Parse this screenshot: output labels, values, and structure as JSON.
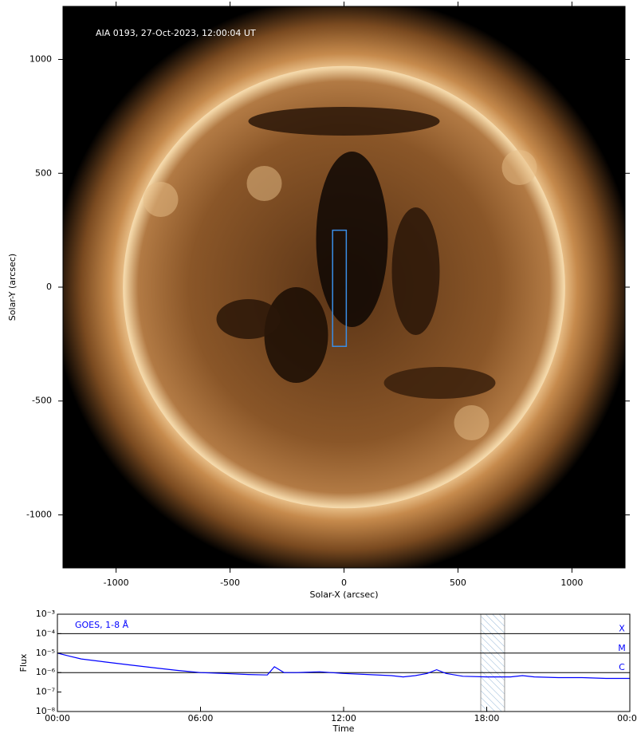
{
  "chart_data": [
    {
      "type": "image",
      "annotation": "AIA 0193, 27-Oct-2023, 12:00:04 UT",
      "xlabel": "Solar-X (arcsec)",
      "ylabel": "Solar-Y (arcsec)",
      "xlim": [
        -1233,
        1233
      ],
      "ylim": [
        -1233,
        1233
      ],
      "xticks": [
        -1000,
        -500,
        0,
        500,
        1000
      ],
      "yticks": [
        -1000,
        -500,
        0,
        500,
        1000
      ],
      "region": {
        "x": [
          -50,
          10
        ],
        "y": [
          -260,
          250
        ],
        "color": "#3a8ee6"
      }
    },
    {
      "type": "line",
      "annotation": "GOES, 1-8 Å",
      "xlabel": "Time",
      "ylabel": "Flux",
      "xlim": [
        0,
        24
      ],
      "ylim": [
        1e-08,
        0.001
      ],
      "ylog": true,
      "xticks": [
        {
          "value": 0,
          "label": "00:00"
        },
        {
          "value": 6,
          "label": "06:00"
        },
        {
          "value": 12,
          "label": "12:00"
        },
        {
          "value": 18,
          "label": "18:00"
        },
        {
          "value": 24,
          "label": "00:00"
        }
      ],
      "yticks": [
        {
          "value": 1e-08,
          "label": "10⁻⁸"
        },
        {
          "value": 1e-07,
          "label": "10⁻⁷"
        },
        {
          "value": 1e-06,
          "label": "10⁻⁶"
        },
        {
          "value": 1e-05,
          "label": "10⁻⁵"
        },
        {
          "value": 0.0001,
          "label": "10⁻⁴"
        },
        {
          "value": 0.001,
          "label": "10⁻³"
        }
      ],
      "levels": [
        {
          "value": 0.0001,
          "label": "X"
        },
        {
          "value": 1e-05,
          "label": "M"
        },
        {
          "value": 1e-06,
          "label": "C"
        }
      ],
      "span": [
        17.75,
        18.75
      ],
      "series": [
        {
          "name": "GOES, 1-8 Å",
          "color": "#0000ff",
          "x": [
            0,
            0.5,
            1,
            2,
            3,
            4,
            5,
            6,
            7,
            8,
            8.8,
            9.1,
            9.5,
            10,
            11,
            12,
            13,
            14,
            14.5,
            15,
            15.5,
            15.9,
            16.3,
            17,
            18,
            19,
            19.5,
            20,
            21,
            22,
            23,
            24
          ],
          "values": [
            1e-05,
            7e-06,
            5e-06,
            3.5e-06,
            2.5e-06,
            1.8e-06,
            1.3e-06,
            1e-06,
            9e-07,
            8e-07,
            7.5e-07,
            2e-06,
            1e-06,
            1e-06,
            1.1e-06,
            9e-07,
            8e-07,
            7e-07,
            6e-07,
            7e-07,
            9e-07,
            1.4e-06,
            9e-07,
            6.5e-07,
            6e-07,
            6e-07,
            7e-07,
            6e-07,
            5.5e-07,
            5.5e-07,
            5e-07,
            5e-07
          ]
        }
      ]
    }
  ]
}
